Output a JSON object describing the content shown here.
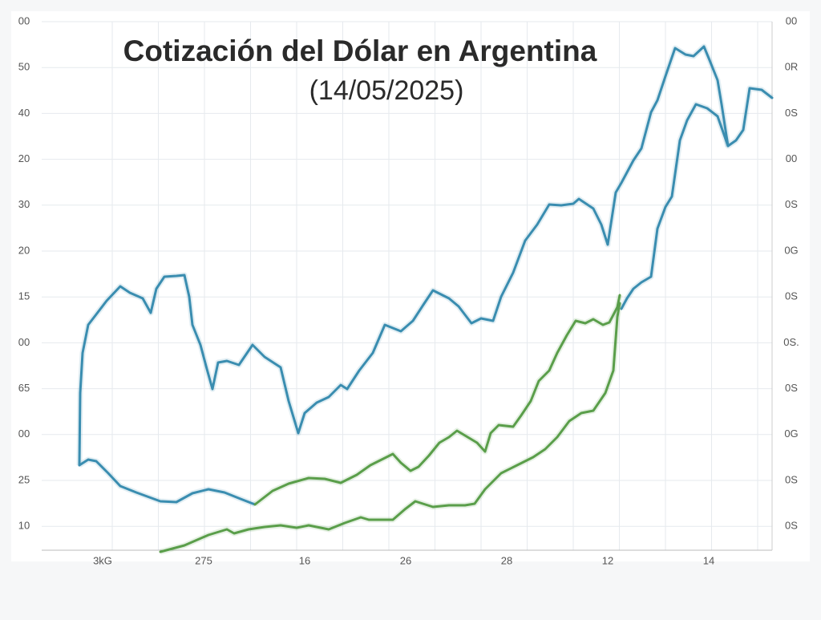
{
  "chart_data": {
    "type": "line",
    "title": "Cotización del Dólar en Argentina",
    "subtitle": "(14/05/2025)",
    "left_axis_labels": [
      "00",
      "50",
      "40",
      "20",
      "30",
      "20",
      "15",
      "00",
      "65",
      "00",
      "25",
      "10"
    ],
    "right_axis_labels": [
      "00",
      "0R",
      "0S",
      "00",
      "0S",
      "0G",
      "0S",
      "0S.",
      "0S",
      "0G",
      "0S",
      "0S"
    ],
    "x_labels": [
      "3kG",
      "275",
      "16",
      "26",
      "28",
      "12",
      "14"
    ],
    "xlim": [
      52,
      963
    ],
    "ylim": [
      0,
      659
    ],
    "grid": true,
    "series": [
      {
        "color": "#3a8db0",
        "x": [
          99,
          100,
          103,
          110,
          120,
          133,
          150,
          162,
          178,
          188,
          195,
          205,
          220,
          230,
          236,
          240,
          250,
          258,
          265,
          272,
          283,
          298,
          315,
          330,
          350,
          360,
          372,
          380,
          395,
          410,
          425,
          433,
          448,
          465,
          480,
          500,
          515,
          528,
          540,
          560,
          572,
          588,
          600,
          615,
          625,
          640,
          655,
          670,
          685,
          700,
          715,
          722,
          740,
          750,
          758,
          768,
          775,
          790,
          800,
          812,
          820,
          830,
          842,
          855,
          865,
          878,
          885,
          895,
          900,
          908,
          918,
          927,
          935,
          950,
          963
        ],
        "values": [
          106,
          196,
          246,
          281,
          294,
          311,
          329,
          321,
          314,
          296,
          326,
          341,
          342,
          343,
          316,
          281,
          256,
          226,
          201,
          234,
          236,
          231,
          256,
          241,
          228,
          186,
          146,
          171,
          184,
          191,
          206,
          201,
          224,
          246,
          281,
          273,
          286,
          306,
          324,
          314,
          304,
          283,
          289,
          286,
          316,
          346,
          386,
          406,
          431,
          430,
          432,
          438,
          426,
          406,
          381,
          446,
          458,
          486,
          501,
          546,
          561,
          591,
          626,
          618,
          616,
          628,
          611,
          586,
          556,
          504,
          511,
          524,
          576,
          574,
          564
        ]
      },
      {
        "color": "#3a8db0",
        "x": [
          99,
          110,
          120,
          135,
          150,
          170,
          200,
          220,
          240,
          260,
          280,
          300,
          318
        ],
        "values": [
          106,
          113,
          111,
          96,
          80,
          72,
          61,
          60,
          71,
          76,
          72,
          64,
          57
        ]
      },
      {
        "color": "#5a9e4a",
        "x": [
          318,
          340,
          360,
          385,
          405,
          425,
          445,
          462,
          478,
          490,
          500,
          512,
          522,
          535,
          548,
          560,
          570,
          580,
          595,
          605,
          612,
          622,
          640,
          650,
          662,
          672,
          685,
          695,
          707,
          718,
          730,
          740,
          752,
          760,
          770,
          773
        ],
        "values": [
          57,
          74,
          83,
          90,
          89,
          84,
          94,
          106,
          114,
          120,
          109,
          99,
          104,
          118,
          134,
          141,
          149,
          143,
          134,
          123,
          146,
          156,
          154,
          168,
          186,
          211,
          224,
          246,
          268,
          286,
          283,
          288,
          281,
          284,
          303,
          318
        ]
      },
      {
        "color": "#3a8db0",
        "x": [
          775,
          782,
          790,
          800,
          812,
          820,
          830,
          838,
          848,
          857,
          868,
          882,
          895,
          908
        ],
        "values": [
          301,
          314,
          326,
          334,
          341,
          401,
          428,
          441,
          511,
          536,
          556,
          551,
          541,
          504
        ]
      },
      {
        "color": "#5a9e4a",
        "x": [
          200,
          230,
          260,
          283,
          292,
          310,
          330,
          350,
          370,
          385,
          410,
          430,
          450,
          460,
          490,
          505,
          518,
          540,
          560,
          580,
          592,
          605,
          625,
          645,
          665,
          680,
          695,
          710,
          725,
          740,
          755,
          765,
          770,
          773
        ],
        "values": [
          -2,
          6,
          19,
          26,
          21,
          26,
          29,
          31,
          28,
          31,
          26,
          34,
          41,
          38,
          38,
          51,
          61,
          54,
          56,
          56,
          58,
          76,
          96,
          106,
          116,
          126,
          141,
          161,
          171,
          174,
          196,
          224,
          291,
          308
        ]
      }
    ]
  }
}
